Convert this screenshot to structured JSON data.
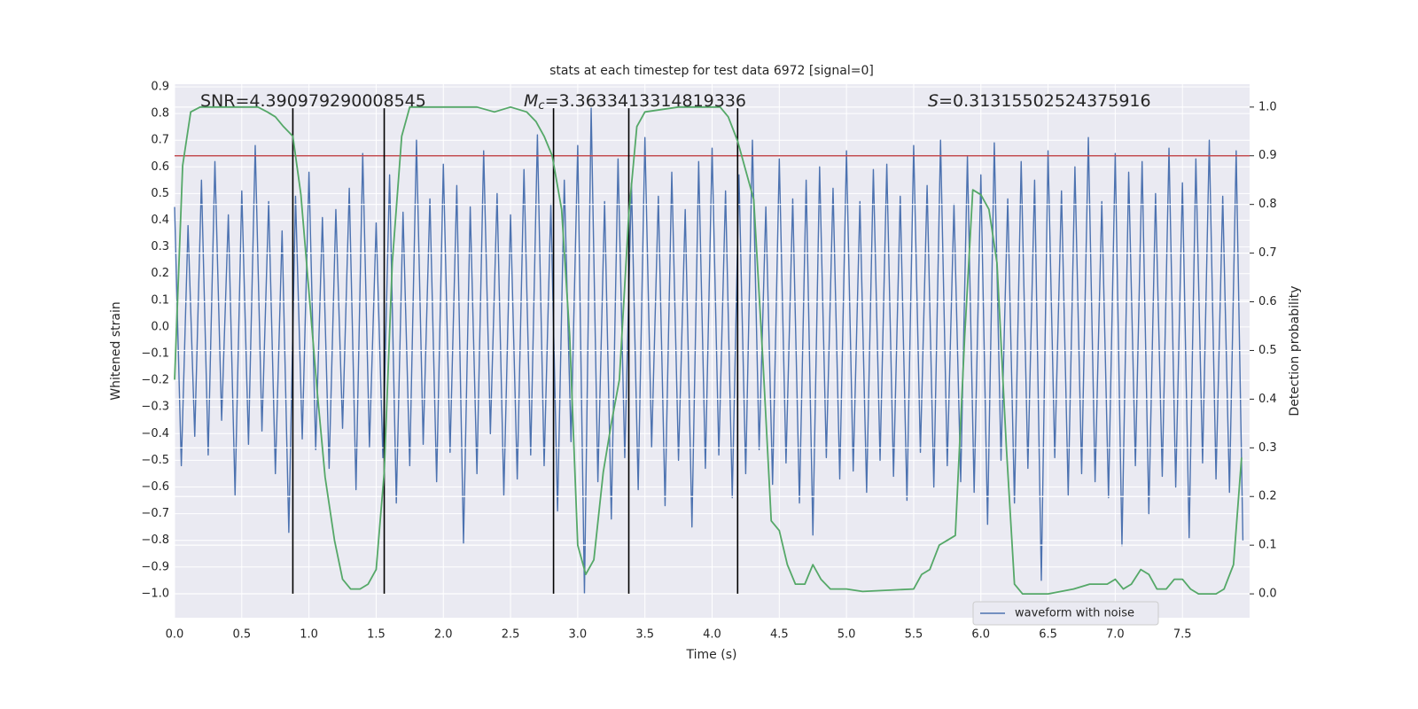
{
  "chart_data": {
    "type": "line",
    "title": "stats at each timestep for test data 6972 [signal=0]",
    "xlabel": "Time (s)",
    "ylabel": "Whitened strain",
    "y2label": "Detection probability",
    "x": [
      0,
      0.05,
      0.1,
      0.15,
      0.2,
      0.25,
      0.3,
      0.35,
      0.4,
      0.45,
      0.5,
      0.55,
      0.6,
      0.65,
      0.7,
      0.75,
      0.8,
      0.85,
      0.9,
      0.95,
      1.0,
      1.05,
      1.1,
      1.15,
      1.2,
      1.25,
      1.3,
      1.35,
      1.4,
      1.45,
      1.5,
      1.55,
      1.6,
      1.65,
      1.7,
      1.75,
      1.8,
      1.85,
      1.9,
      1.95,
      2.0,
      2.05,
      2.1,
      2.15,
      2.2,
      2.25,
      2.3,
      2.35,
      2.4,
      2.45,
      2.5,
      2.55,
      2.6,
      2.65,
      2.7,
      2.75,
      2.8,
      2.85,
      2.9,
      2.95,
      3.0,
      3.05,
      3.1,
      3.15,
      3.2,
      3.25,
      3.3,
      3.35,
      3.4,
      3.45,
      3.5,
      3.55,
      3.6,
      3.65,
      3.7,
      3.75,
      3.8,
      3.85,
      3.9,
      3.95,
      4.0,
      4.05,
      4.1,
      4.15,
      4.2,
      4.25,
      4.3,
      4.35,
      4.4,
      4.45,
      4.5,
      4.55,
      4.6,
      4.65,
      4.7,
      4.75,
      4.8,
      4.85,
      4.9,
      4.95,
      5.0,
      5.05,
      5.1,
      5.15,
      5.2,
      5.25,
      5.3,
      5.35,
      5.4,
      5.45,
      5.5,
      5.55,
      5.6,
      5.65,
      5.7,
      5.75,
      5.8,
      5.85,
      5.9,
      5.95,
      6.0,
      6.05,
      6.1,
      6.15,
      6.2,
      6.25,
      6.3,
      6.35,
      6.4,
      6.45,
      6.5,
      6.55,
      6.6,
      6.65,
      6.7,
      6.75,
      6.8,
      6.85,
      6.9,
      6.95,
      7.0,
      7.05,
      7.1,
      7.15,
      7.2,
      7.25,
      7.3,
      7.35,
      7.4,
      7.45,
      7.5,
      7.55,
      7.6,
      7.65,
      7.7,
      7.75,
      7.8,
      7.85,
      7.9,
      7.95
    ],
    "series": [
      {
        "name": "waveform with noise",
        "color": "#4c72b0",
        "values": [
          0.45,
          -0.52,
          0.38,
          -0.41,
          0.55,
          -0.48,
          0.62,
          -0.35,
          0.42,
          -0.63,
          0.51,
          -0.44,
          0.68,
          -0.39,
          0.47,
          -0.55,
          0.36,
          -0.77,
          0.49,
          -0.42,
          0.58,
          -0.46,
          0.41,
          -0.53,
          0.44,
          -0.38,
          0.52,
          -0.61,
          0.65,
          -0.45,
          0.39,
          -0.49,
          0.57,
          -0.66,
          0.43,
          -0.52,
          0.7,
          -0.44,
          0.48,
          -0.58,
          0.61,
          -0.47,
          0.53,
          -0.81,
          0.45,
          -0.55,
          0.66,
          -0.4,
          0.5,
          -0.63,
          0.42,
          -0.57,
          0.59,
          -0.48,
          0.72,
          -0.52,
          0.46,
          -0.69,
          0.55,
          -0.43,
          0.68,
          -1.0,
          0.82,
          -0.58,
          0.47,
          -0.72,
          0.63,
          -0.49,
          0.54,
          -0.61,
          0.71,
          -0.45,
          0.49,
          -0.67,
          0.58,
          -0.5,
          0.44,
          -0.75,
          0.62,
          -0.53,
          0.67,
          -0.48,
          0.51,
          -0.64,
          0.57,
          -0.55,
          0.7,
          -0.46,
          0.45,
          -0.59,
          0.63,
          -0.51,
          0.48,
          -0.66,
          0.55,
          -0.78,
          0.6,
          -0.49,
          0.52,
          -0.57,
          0.66,
          -0.54,
          0.47,
          -0.62,
          0.59,
          -0.5,
          0.61,
          -0.56,
          0.49,
          -0.65,
          0.68,
          -0.47,
          0.53,
          -0.6,
          0.7,
          -0.52,
          0.46,
          -0.58,
          0.64,
          -0.62,
          0.57,
          -0.74,
          0.69,
          -0.5,
          0.48,
          -0.66,
          0.62,
          -0.53,
          0.55,
          -0.95,
          0.66,
          -0.49,
          0.51,
          -0.63,
          0.6,
          -0.55,
          0.71,
          -0.58,
          0.47,
          -0.64,
          0.65,
          -0.82,
          0.58,
          -0.52,
          0.62,
          -0.7,
          0.5,
          -0.56,
          0.67,
          -0.6,
          0.54,
          -0.79,
          0.63,
          -0.51,
          0.7,
          -0.57,
          0.49,
          -0.62,
          0.66,
          -0.8
        ]
      },
      {
        "color": "#55a868",
        "axis": "y2",
        "x": [
          0,
          0.06,
          0.12,
          0.19,
          0.25,
          0.5,
          0.62,
          0.69,
          0.75,
          0.81,
          0.88,
          0.94,
          1.0,
          1.06,
          1.12,
          1.19,
          1.25,
          1.31,
          1.38,
          1.44,
          1.5,
          1.56,
          1.62,
          1.69,
          1.75,
          2.0,
          2.25,
          2.38,
          2.5,
          2.62,
          2.69,
          2.75,
          2.81,
          2.88,
          2.94,
          3.0,
          3.06,
          3.12,
          3.19,
          3.25,
          3.31,
          3.38,
          3.44,
          3.5,
          3.75,
          4.0,
          4.06,
          4.12,
          4.19,
          4.25,
          4.31,
          4.38,
          4.44,
          4.5,
          4.56,
          4.62,
          4.69,
          4.75,
          4.81,
          4.88,
          4.94,
          5.0,
          5.12,
          5.5,
          5.56,
          5.62,
          5.69,
          5.75,
          5.81,
          5.88,
          5.94,
          6.0,
          6.06,
          6.12,
          6.19,
          6.25,
          6.31,
          6.5,
          6.69,
          6.81,
          6.94,
          7.0,
          7.06,
          7.12,
          7.19,
          7.25,
          7.31,
          7.38,
          7.44,
          7.5,
          7.56,
          7.62,
          7.75,
          7.81,
          7.88,
          7.94
        ],
        "values": [
          0.44,
          0.88,
          0.99,
          1.0,
          1.0,
          1.0,
          1.0,
          0.99,
          0.98,
          0.96,
          0.94,
          0.82,
          0.62,
          0.42,
          0.24,
          0.11,
          0.03,
          0.01,
          0.01,
          0.02,
          0.05,
          0.25,
          0.68,
          0.94,
          1.0,
          1.0,
          1.0,
          0.99,
          1.0,
          0.99,
          0.97,
          0.94,
          0.9,
          0.79,
          0.53,
          0.1,
          0.04,
          0.07,
          0.25,
          0.35,
          0.44,
          0.78,
          0.96,
          0.99,
          1.0,
          1.0,
          1.0,
          0.98,
          0.93,
          0.87,
          0.81,
          0.47,
          0.15,
          0.13,
          0.06,
          0.02,
          0.02,
          0.06,
          0.03,
          0.01,
          0.01,
          0.01,
          0.005,
          0.01,
          0.04,
          0.05,
          0.1,
          0.11,
          0.12,
          0.53,
          0.83,
          0.82,
          0.79,
          0.68,
          0.3,
          0.02,
          0.0,
          0.0,
          0.01,
          0.02,
          0.02,
          0.03,
          0.01,
          0.02,
          0.05,
          0.04,
          0.01,
          0.01,
          0.03,
          0.03,
          0.01,
          0.0,
          0.0,
          0.01,
          0.06,
          0.28
        ]
      }
    ],
    "vlines": {
      "x": [
        0.88,
        1.56,
        2.82,
        3.38,
        4.19
      ],
      "ymin": -1.0,
      "ymax": 0.82,
      "color": "#000000"
    },
    "hline": {
      "value": 0.9,
      "axis": "y2",
      "color": "#c44e52"
    },
    "annotations": [
      [
        {
          "text": "SNR=4.390979290008545"
        }
      ],
      [
        {
          "text": "M",
          "style": "italic"
        },
        {
          "text": "c",
          "style": "sub"
        },
        {
          "text": "=3.3633413314819336"
        }
      ],
      [
        {
          "text": "S",
          "style": "italic"
        },
        {
          "text": "=0.31315502524375916"
        }
      ]
    ],
    "xlim": [
      0,
      8.0
    ],
    "ylim": [
      -1.09,
      0.91
    ],
    "y2lim": [
      -0.049,
      1.047
    ],
    "xticks": [
      {
        "value": 0,
        "label": "0.0"
      },
      0.5,
      {
        "value": 1,
        "label": "1.0"
      },
      1.5,
      {
        "value": 2,
        "label": "2.0"
      },
      2.5,
      {
        "value": 3,
        "label": "3.0"
      },
      3.5,
      {
        "value": 4,
        "label": "4.0"
      },
      4.5,
      {
        "value": 5,
        "label": "5.0"
      },
      5.5,
      {
        "value": 6,
        "label": "6.0"
      },
      6.5,
      {
        "value": 7,
        "label": "7.0"
      },
      7.5
    ],
    "yticks": [
      {
        "value": -1.0,
        "label": "−1.0"
      },
      {
        "value": -0.9,
        "label": "−0.9"
      },
      {
        "value": -0.8,
        "label": "−0.8"
      },
      {
        "value": -0.7,
        "label": "−0.7"
      },
      {
        "value": -0.6,
        "label": "−0.6"
      },
      {
        "value": -0.5,
        "label": "−0.5"
      },
      {
        "value": -0.4,
        "label": "−0.4"
      },
      {
        "value": -0.3,
        "label": "−0.3"
      },
      {
        "value": -0.2,
        "label": "−0.2"
      },
      {
        "value": -0.1,
        "label": "−0.1"
      },
      {
        "value": 0,
        "label": "0.0"
      },
      0.1,
      0.2,
      0.3,
      0.4,
      0.5,
      0.6,
      0.7,
      0.8,
      0.9
    ],
    "y2ticks": [
      {
        "value": 0,
        "label": "0.0"
      },
      0.1,
      0.2,
      0.3,
      0.4,
      0.5,
      0.6,
      0.7,
      0.8,
      0.9,
      {
        "value": 1,
        "label": "1.0"
      }
    ],
    "grid": true,
    "legend": "lower right"
  }
}
